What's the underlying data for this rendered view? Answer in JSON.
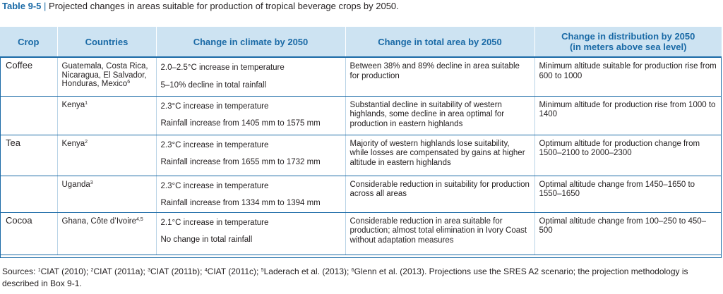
{
  "caption": {
    "label": "Table 9-5",
    "separator": "|",
    "text": "Projected changes in areas suitable for production of tropical beverage crops by 2050."
  },
  "headers": {
    "crop": "Crop",
    "countries": "Countries",
    "climate": "Change in climate by 2050",
    "area": "Change in total area by 2050",
    "distribution_line1": "Change in distribution by 2050",
    "distribution_line2": "(in meters above sea level)"
  },
  "rows": [
    {
      "crop": "Coffee",
      "countries": "Guatemala, Costa Rica, Nicaragua, El Salvador, Honduras, Mexico",
      "countries_sup": "6",
      "climate": [
        "2.0–2.5°C increase in temperature",
        "5–10% decline in total rainfall"
      ],
      "area": "Between 38% and 89% decline in area suitable for production",
      "distribution": "Minimum altitude suitable for production rise from 600 to 1000"
    },
    {
      "crop": "",
      "countries": "Kenya",
      "countries_sup": "1",
      "climate": [
        "2.3°C increase in temperature",
        "Rainfall increase from 1405 mm to 1575 mm"
      ],
      "area": "Substantial decline in suitability of western highlands, some decline in area optimal for production in eastern highlands",
      "distribution": "Minimum altitude for production rise from 1000 to 1400"
    },
    {
      "crop": "Tea",
      "countries": "Kenya",
      "countries_sup": "2",
      "climate": [
        "2.3°C increase in temperature",
        "Rainfall increase from 1655 mm to 1732 mm"
      ],
      "area": "Majority of western highlands lose suitability, while losses are compensated by gains at higher altitude in eastern highlands",
      "distribution": "Optimum altitude for production change from 1500–2100 to 2000–2300"
    },
    {
      "crop": "",
      "countries": "Uganda",
      "countries_sup": "3",
      "climate": [
        "2.3°C increase in temperature",
        "Rainfall increase from 1334 mm to 1394 mm"
      ],
      "area": "Considerable reduction in suitability for production across all areas",
      "distribution": "Optimal altitude change from 1450–1650 to 1550–1650"
    },
    {
      "crop": "Cocoa",
      "countries": "Ghana, Côte d’Ivoire",
      "countries_sup": "4,5",
      "climate": [
        "2.1°C increase in temperature",
        "No change in total rainfall"
      ],
      "area": "Considerable reduction in area suitable for production; almost total elimination in Ivory Coast without adaptation measures",
      "distribution": "Optimal altitude change from 100–250 to 450–500"
    }
  ],
  "sources": {
    "prefix": "Sources: ",
    "items": [
      {
        "sup": "1",
        "text": "CIAT (2010); "
      },
      {
        "sup": "2",
        "text": "CIAT (2011a); "
      },
      {
        "sup": "3",
        "text": "CIAT (2011b); "
      },
      {
        "sup": "4",
        "text": "CIAT (2011c); "
      },
      {
        "sup": "5",
        "text": "Laderach et al. (2013); "
      },
      {
        "sup": "6",
        "text": "Glenn et al. (2013). "
      }
    ],
    "note": "Projections use the SRES A2 scenario; the projection methodology is described in Box 9-1."
  },
  "colors": {
    "accent": "#1a6aa6",
    "header_fill": "#cde3f2"
  }
}
